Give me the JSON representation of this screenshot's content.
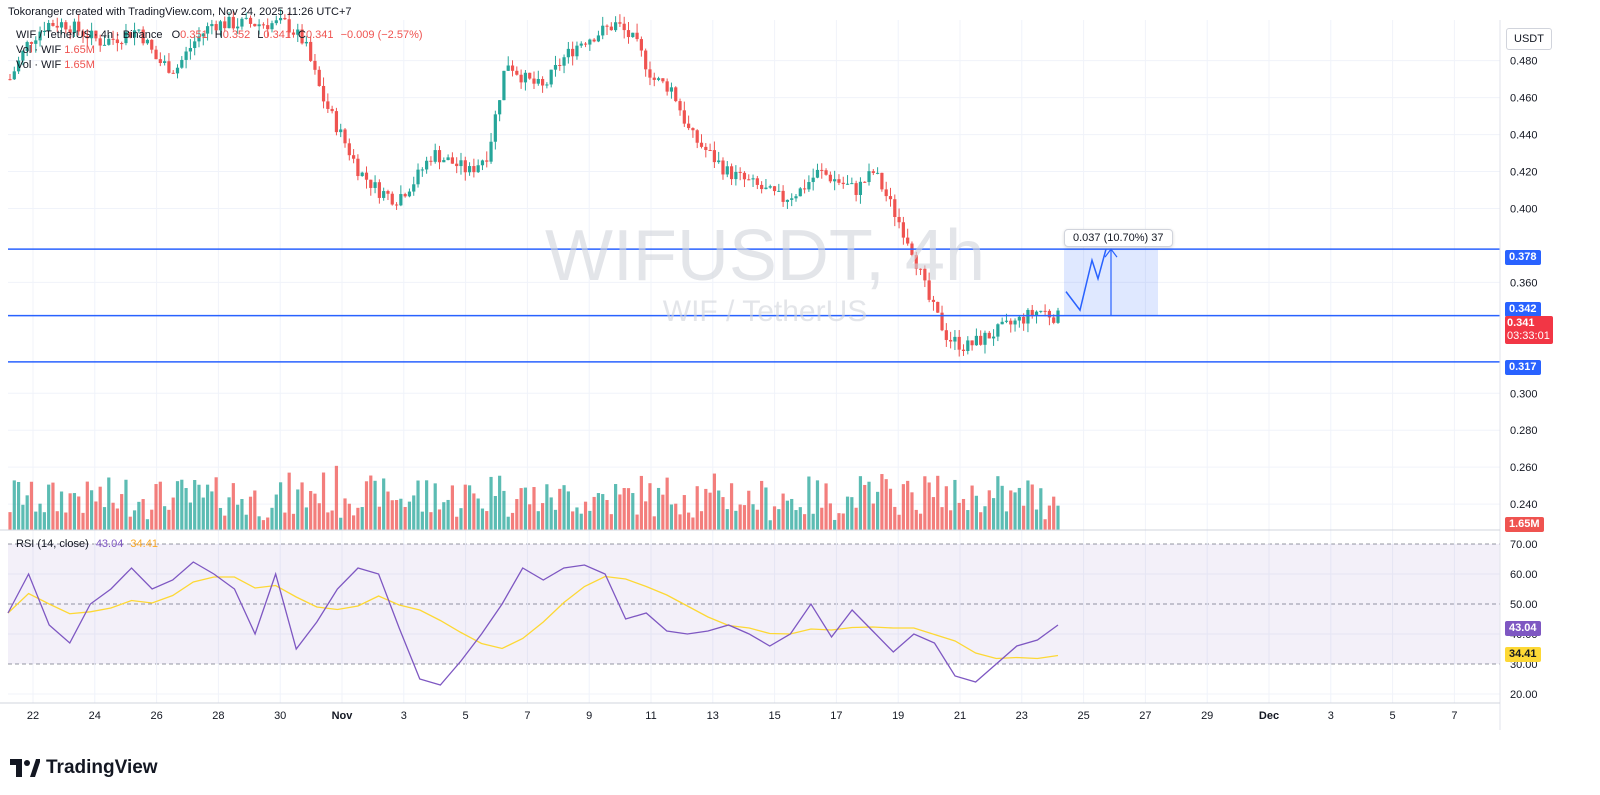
{
  "header": {
    "credit": "Tokoranger created with TradingView.com, Nov 24, 2025 11:26 UTC+7",
    "symbol_line": "WIF / TetherUS · 4h · Binance",
    "o_label": "O",
    "o_value": "0.351",
    "h_label": "H",
    "h_value": "0.352",
    "l_label": "L",
    "l_value": "0.341",
    "c_label": "C",
    "c_value": "0.341",
    "change": "−0.009 (−2.57%)",
    "vol1_label": "Vol · WIF",
    "vol1_value": "1.65M",
    "vol2_label": "Vol · WIF",
    "vol2_value": "1.65M"
  },
  "currency": "USDT",
  "watermark": {
    "main": "WIFUSDT, 4h",
    "sub": "WIF / TetherUS"
  },
  "measure_label": "0.037 (10.70%) 37",
  "rsi_header": {
    "label": "RSI (14, close)",
    "rsi_value": "43.04",
    "ma_value": "34.41"
  },
  "price_tags": {
    "level_378": "0.378",
    "level_342": "0.342",
    "current_price": "0.341",
    "countdown": "03:33:01",
    "level_317": "0.317",
    "volume": "1.65M",
    "rsi": "43.04",
    "rsi_ma": "34.41"
  },
  "brand": "TradingView",
  "colors": {
    "up": "#26a69a",
    "down": "#ef5350",
    "line": "#2962ff",
    "rsi": "#7e57c2",
    "rsi_ma": "#fdd835"
  },
  "chart_data": {
    "type": "candlestick",
    "price_axis_ticks": [
      "0.480",
      "0.460",
      "0.440",
      "0.420",
      "0.400",
      "0.360",
      "0.300",
      "0.280",
      "0.260",
      "0.240"
    ],
    "price_range": [
      0.226,
      0.502
    ],
    "rsi_axis_ticks": [
      "70.00",
      "60.00",
      "50.00",
      "40.00",
      "30.00",
      "20.00"
    ],
    "rsi_range": [
      17,
      73
    ],
    "x_ticks": [
      "22",
      "24",
      "26",
      "28",
      "30",
      "Nov",
      "3",
      "5",
      "7",
      "9",
      "11",
      "13",
      "15",
      "17",
      "19",
      "21",
      "23",
      "25",
      "27",
      "29",
      "Dec",
      "3",
      "5",
      "7"
    ],
    "horizontal_levels": [
      0.378,
      0.342,
      0.317
    ],
    "measure_range": [
      0.342,
      0.378
    ],
    "price_anchors": [
      0.47,
      0.49,
      0.5,
      0.5,
      0.495,
      0.49,
      0.493,
      0.497,
      0.48,
      0.475,
      0.49,
      0.5,
      0.5,
      0.5,
      0.5,
      0.5,
      0.49,
      0.46,
      0.44,
      0.42,
      0.41,
      0.405,
      0.415,
      0.43,
      0.425,
      0.42,
      0.43,
      0.48,
      0.47,
      0.465,
      0.48,
      0.49,
      0.495,
      0.5,
      0.49,
      0.47,
      0.465,
      0.44,
      0.43,
      0.42,
      0.415,
      0.41,
      0.405,
      0.41,
      0.42,
      0.415,
      0.41,
      0.42,
      0.4,
      0.38,
      0.35,
      0.33,
      0.325,
      0.33,
      0.335,
      0.34,
      0.345,
      0.341
    ],
    "rsi_anchors": [
      47,
      60,
      43,
      37,
      50,
      55,
      62,
      55,
      58,
      64,
      60,
      55,
      40,
      60,
      35,
      44,
      55,
      62,
      60,
      42,
      25,
      23,
      31,
      40,
      50,
      62,
      58,
      62,
      63,
      60,
      45,
      47,
      41,
      40,
      41,
      43,
      40,
      36,
      40,
      50,
      39,
      48,
      41,
      34,
      40,
      37,
      26,
      24,
      30,
      36,
      38,
      43
    ]
  }
}
